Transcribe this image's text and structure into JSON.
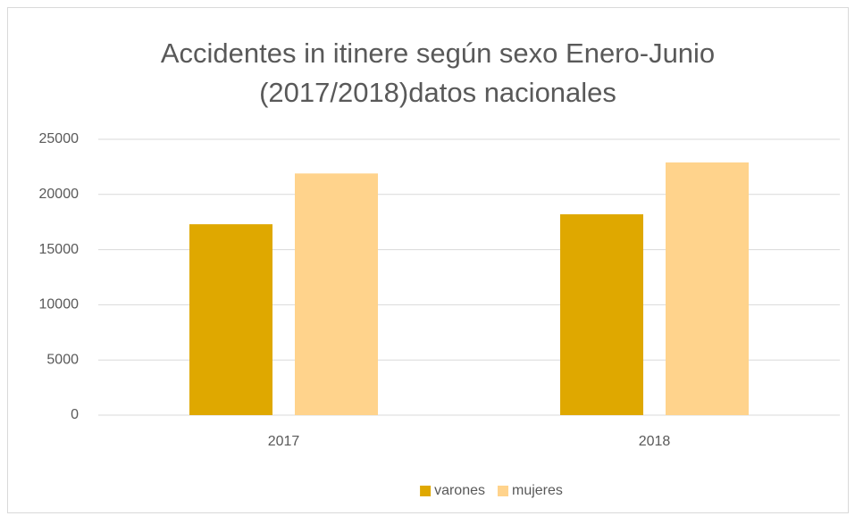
{
  "chart_data": {
    "type": "bar",
    "title": "Accidentes in itinere según sexo Enero-Junio (2017/2018)datos nacionales",
    "categories": [
      "2017",
      "2018"
    ],
    "series": [
      {
        "name": "varones",
        "color": "#dfa800",
        "values": [
          17300,
          18200
        ]
      },
      {
        "name": "mujeres",
        "color": "#ffd38c",
        "values": [
          21900,
          22900
        ]
      }
    ],
    "ylim": [
      0,
      25000
    ],
    "yticks": [
      0,
      5000,
      10000,
      15000,
      20000,
      25000
    ],
    "grid": true,
    "legend": "bottom"
  }
}
